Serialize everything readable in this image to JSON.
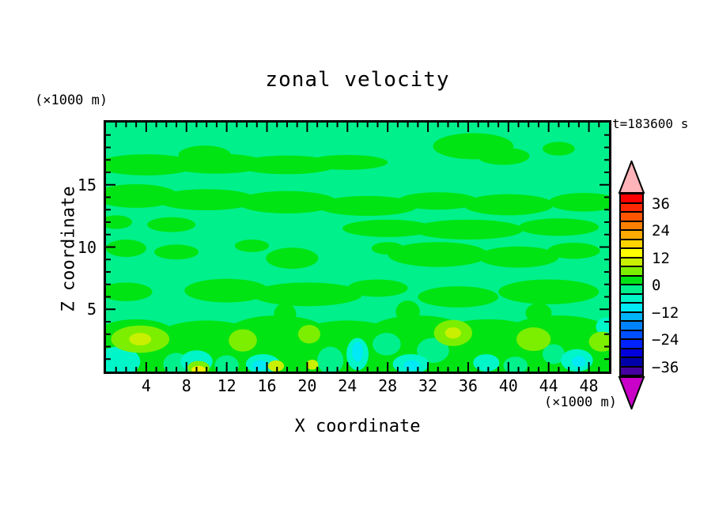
{
  "figure": {
    "title": "zonal velocity",
    "time_label": "t=183600 s",
    "x_axis": {
      "label": "X coordinate",
      "unit_label": "(×1000 m)",
      "min": 0,
      "max": 50,
      "minor_step": 1,
      "major_step": 4,
      "tick_values": [
        4,
        8,
        12,
        16,
        20,
        24,
        28,
        32,
        36,
        40,
        44,
        48
      ],
      "tick_labels": [
        "4",
        "8",
        "12",
        "16",
        "20",
        "24",
        "28",
        "32",
        "36",
        "40",
        "44",
        "48"
      ]
    },
    "y_axis": {
      "label": "Z coordinate",
      "unit_label": "(×1000 m)",
      "min": 0,
      "max": 20,
      "minor_step": 1,
      "major_step": 5,
      "tick_values": [
        5,
        10,
        15
      ],
      "tick_labels": [
        "5",
        "10",
        "15"
      ]
    },
    "colorbar": {
      "tick_labels": [
        "36",
        "24",
        "12",
        "0",
        "−12",
        "−24",
        "−36"
      ],
      "over_color": "#FFB4B9",
      "under_color": "#C800C8",
      "cells": [
        {
          "range": "36..40",
          "color": "#FF0000"
        },
        {
          "range": "32..36",
          "color": "#FF2800"
        },
        {
          "range": "28..32",
          "color": "#FF5500"
        },
        {
          "range": "24..28",
          "color": "#FF8000"
        },
        {
          "range": "20..24",
          "color": "#FFAA00"
        },
        {
          "range": "16..20",
          "color": "#FFD200"
        },
        {
          "range": "12..16",
          "color": "#FFFF00"
        },
        {
          "range": "8..12",
          "color": "#C8F000"
        },
        {
          "range": "4..8",
          "color": "#7CEF00"
        },
        {
          "range": "0..4",
          "color": "#00E414"
        },
        {
          "range": "-4..0",
          "color": "#00F08C"
        },
        {
          "range": "-8..-4",
          "color": "#00F5C8"
        },
        {
          "range": "-12..-8",
          "color": "#00E9F5"
        },
        {
          "range": "-16..-12",
          "color": "#00B4FA"
        },
        {
          "range": "-20..-16",
          "color": "#0082FF"
        },
        {
          "range": "-24..-20",
          "color": "#0050FF"
        },
        {
          "range": "-28..-24",
          "color": "#0023FF"
        },
        {
          "range": "-32..-28",
          "color": "#0000DC"
        },
        {
          "range": "-36..-32",
          "color": "#0000AA"
        },
        {
          "range": "-40..-36",
          "color": "#4600A0"
        }
      ]
    },
    "field_colors": {
      "bg": "#00F08C",
      "green": "#00E414",
      "chartreuse": "#7CEF00",
      "yellow_green": "#C8F000",
      "yellow": "#F0F000",
      "turquoise": "#00F5C8",
      "cyan": "#00E9F5"
    }
  },
  "chart_data": {
    "type": "filled_contour",
    "title": "zonal velocity",
    "annotation": "t=183600 s",
    "xlabel": "X coordinate",
    "ylabel": "Z coordinate",
    "x_unit": "×1000 m",
    "z_unit": "×1000 m",
    "xlim": [
      0,
      50
    ],
    "zlim": [
      0,
      20
    ],
    "contour_interval": 4,
    "levels": [
      -40,
      -36,
      -32,
      -28,
      -24,
      -20,
      -16,
      -12,
      -8,
      -4,
      0,
      4,
      8,
      12,
      16,
      20,
      24,
      28,
      32,
      36,
      40
    ],
    "colorbar_labeled_levels": [
      36,
      24,
      12,
      0,
      -12,
      -24,
      -36
    ],
    "legend_position": "right",
    "grid": false,
    "field_summary": [
      "Dominant background value between -4 and 0 (spring green) over most of the domain",
      "Wavy horizontal bands of 0..4 (green) centered near z≈6.5, z≈9.5, z≈13.5-14, z≈16.5-17 and a patch near x≈33-41 z≈17-19",
      "Boundary layer below z≈4.5 mostly 0..4 (green) with embedded extremes",
      "Near-surface positive patches 4..8 / 8..12 (chartreuse / yellow-green) around x≈1-6, 13-15, 20, 33-36, 41-44, 48-50 at z≈2-4; small 12..16 (yellow) spots near x≈9, 17, 20.5 at the surface",
      "Near-surface negative patches -8..-4 (turquoise) with -12..-8 (cyan) cores around x≈0-3, 8-10, 15-18, 24-26, 29-32, 37-39, 46-48 at z≈0-2 and at the right edge near z≈3.5"
    ]
  }
}
